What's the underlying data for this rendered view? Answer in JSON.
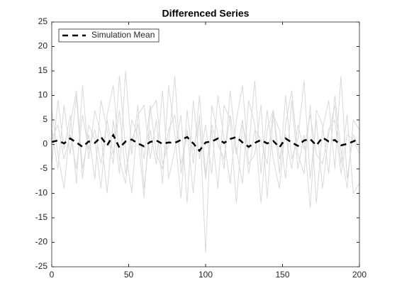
{
  "chart_data": {
    "type": "line",
    "title": "Differenced Series",
    "x": [
      0,
      4,
      8,
      12,
      16,
      20,
      24,
      28,
      32,
      36,
      40,
      44,
      48,
      52,
      56,
      60,
      64,
      68,
      72,
      76,
      80,
      84,
      88,
      92,
      96,
      100,
      104,
      108,
      112,
      116,
      120,
      124,
      128,
      132,
      136,
      140,
      144,
      148,
      152,
      156,
      160,
      164,
      168,
      172,
      176,
      180,
      184,
      188,
      192,
      196,
      200
    ],
    "series": [
      {
        "color": "#d9d9d9",
        "values": [
          3,
          -5,
          8,
          -2,
          10,
          -7,
          4,
          1,
          -9,
          6,
          12,
          -3,
          -8,
          5,
          2,
          -11,
          7,
          9,
          -4,
          0,
          14,
          -6,
          3,
          -10,
          6,
          -22,
          8,
          2,
          -5,
          11,
          -1,
          -8,
          9,
          4,
          -12,
          3,
          7,
          -6,
          10,
          -3,
          1,
          13,
          -7,
          5,
          -9,
          2,
          8,
          -4,
          6,
          -10,
          -8
        ]
      },
      {
        "color": "#d9d9d9",
        "values": [
          -4,
          9,
          -1,
          6,
          -8,
          12,
          -3,
          7,
          2,
          -10,
          5,
          -6,
          15,
          -2,
          8,
          -9,
          3,
          -4,
          11,
          -7,
          -1,
          6,
          -12,
          9,
          -3,
          4,
          -6,
          10,
          1,
          -8,
          5,
          12,
          -4,
          -2,
          8,
          -11,
          6,
          3,
          -7,
          9,
          -5,
          2,
          -13,
          7,
          4,
          -6,
          10,
          -1,
          -9,
          5,
          3
        ]
      },
      {
        "color": "#d9d9d9",
        "values": [
          7,
          -2,
          -9,
          4,
          11,
          -5,
          2,
          -7,
          9,
          3,
          -4,
          14,
          -1,
          -10,
          6,
          8,
          -3,
          5,
          -8,
          12,
          2,
          -11,
          7,
          -4,
          10,
          -6,
          3,
          -9,
          8,
          5,
          -12,
          4,
          -1,
          13,
          -6,
          7,
          -3,
          -9,
          4,
          11,
          -2,
          -6,
          8,
          -12,
          3,
          9,
          -5,
          14,
          -7,
          2,
          -1
        ]
      },
      {
        "color": "#d9d9d9",
        "values": [
          1,
          4,
          -3,
          2,
          -5,
          6,
          -1,
          3,
          -4,
          5,
          -2,
          7,
          -6,
          1,
          4,
          -3,
          8,
          -2,
          -5,
          3,
          6,
          -4,
          2,
          -1,
          5,
          -7,
          4,
          0,
          -3,
          6,
          -2,
          5,
          -6,
          3,
          1,
          -4,
          7,
          -3,
          2,
          -5,
          4,
          -1,
          6,
          -2,
          -4,
          3,
          5,
          -6,
          2,
          1,
          -2
        ]
      },
      {
        "name": "Simulation Mean",
        "color": "#000000",
        "values": [
          0.5,
          0.8,
          0.2,
          1.2,
          0.4,
          -0.5,
          0.6,
          0.3,
          1.5,
          -0.2,
          1.9,
          -0.7,
          0.6,
          1.0,
          0.2,
          -0.4,
          0.5,
          0.8,
          0.1,
          0.4,
          0.3,
          0.9,
          1.5,
          0.2,
          -1.3,
          0.4,
          0.6,
          1.2,
          0.3,
          1.1,
          1.5,
          0.4,
          -0.5,
          0.3,
          0.9,
          0.2,
          0.7,
          -0.6,
          1.2,
          0.4,
          -0.3,
          0.8,
          1.1,
          -0.2,
          1.4,
          0.6,
          0.9,
          -0.2,
          0.1,
          0.6,
          1.2
        ]
      }
    ],
    "xlim": [
      0,
      200
    ],
    "xticks": [
      0,
      50,
      100,
      150,
      200
    ],
    "ylim": [
      -25,
      25
    ],
    "yticks": [
      -25,
      -20,
      -15,
      -10,
      -5,
      0,
      5,
      10,
      15,
      20,
      25
    ],
    "grid": false,
    "legend": "upper left"
  }
}
